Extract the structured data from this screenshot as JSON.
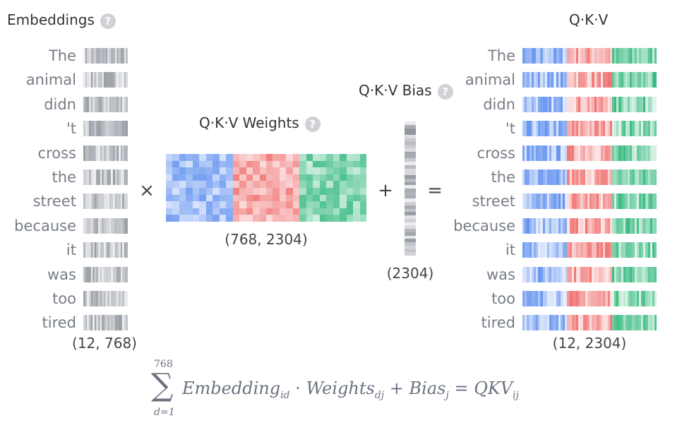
{
  "embeddings": {
    "title": "Embeddings",
    "help_icon": "question-circle-icon",
    "shape": "(12, 768)"
  },
  "tokens": [
    "The",
    "animal",
    "didn",
    "'t",
    "cross",
    "the",
    "street",
    "because",
    "it",
    "was",
    "too",
    "tired"
  ],
  "weights": {
    "title": "Q·K·V Weights",
    "help_icon": "question-circle-icon",
    "shape": "(768, 2304)"
  },
  "bias": {
    "title": "Q·K·V Bias",
    "help_icon": "question-circle-icon",
    "shape": "(2304)"
  },
  "output": {
    "title": "Q·K·V",
    "shape": "(12, 2304)"
  },
  "operators": {
    "multiply": "×",
    "plus": "+",
    "equals": "="
  },
  "formula": {
    "upper": "768",
    "lower": "d=1",
    "sum": "∑",
    "embedding": "Embedding",
    "embedding_sub": "id",
    "dot": "·",
    "weights": "Weights",
    "weights_sub": "dj",
    "plus": "+",
    "bias": "Bias",
    "bias_sub": "j",
    "equals": "=",
    "qkv": "QKV",
    "qkv_sub": "ij"
  },
  "colors": {
    "query": "#5b8def",
    "key": "#f06b6b",
    "value": "#2fb77a",
    "embedding": "#8b9099",
    "help": "#cfd1d6"
  }
}
